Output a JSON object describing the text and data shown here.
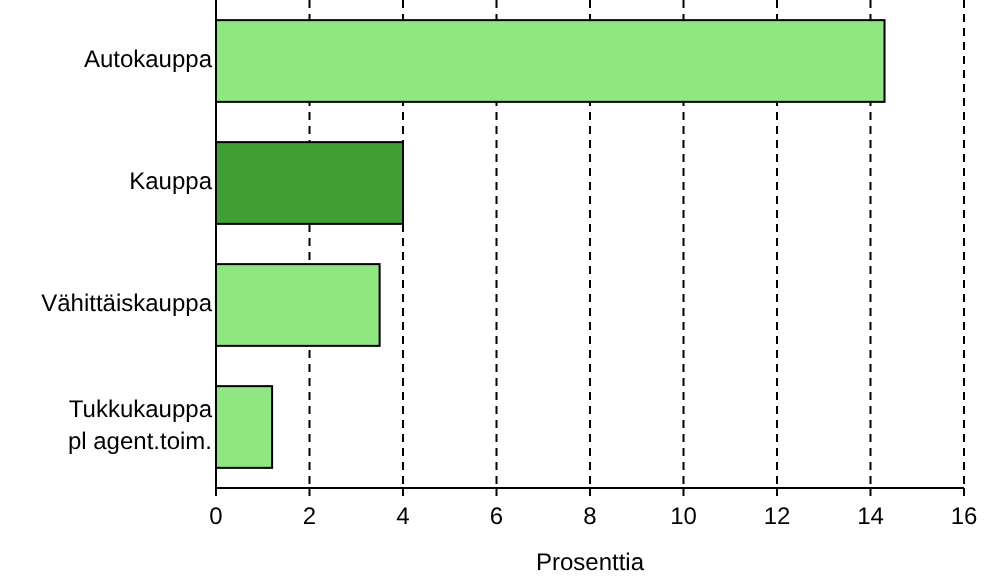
{
  "chart_data": {
    "type": "bar",
    "orientation": "horizontal",
    "xlabel": "Prosenttia",
    "categories": [
      "Autokauppa",
      "Kauppa",
      "Vähittäiskauppa",
      "Tukkukauppa\npl agent.toim."
    ],
    "values": [
      14.3,
      4.0,
      3.5,
      1.2
    ],
    "colors": [
      "#90e680",
      "#40a034",
      "#90e680",
      "#90e680"
    ],
    "xlim": [
      0,
      16
    ],
    "xticks": [
      0,
      2,
      4,
      6,
      8,
      10,
      12,
      14,
      16
    ],
    "grid": "x"
  }
}
